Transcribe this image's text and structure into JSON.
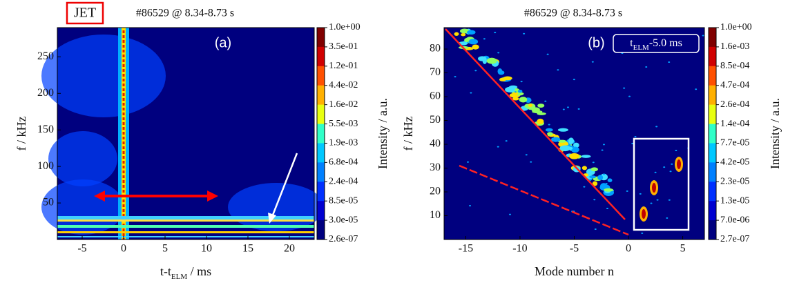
{
  "badge": "JET",
  "chart_data": [
    {
      "type": "heatmap",
      "title": "#86529 @ 8.34-8.73 s",
      "annotation": "(a)",
      "xlabel": [
        "t-t",
        "ELM",
        " / ms"
      ],
      "ylabel": "f / kHz",
      "xlim": [
        -8,
        23
      ],
      "ylim": [
        0,
        290
      ],
      "xticks": [
        -5,
        0,
        5,
        10,
        15,
        20
      ],
      "yticks": [
        50,
        100,
        150,
        200,
        250
      ],
      "colormap": "jet",
      "colorbar_label": "Intensity / a.u.",
      "colorbar_ticks": [
        {
          "value": 1.0,
          "label": "1.0e+00"
        },
        {
          "value": 0.35,
          "label": "3.5e-01"
        },
        {
          "value": 0.12,
          "label": "1.2e-01"
        },
        {
          "value": 0.044,
          "label": "4.4e-02"
        },
        {
          "value": 0.016,
          "label": "1.6e-02"
        },
        {
          "value": 0.0055,
          "label": "5.5e-03"
        },
        {
          "value": 0.0019,
          "label": "1.9e-03"
        },
        {
          "value": 0.00068,
          "label": "6.8e-04"
        },
        {
          "value": 0.00024,
          "label": "2.4e-04"
        },
        {
          "value": 8.5e-05,
          "label": "8.5e-05"
        },
        {
          "value": 3e-05,
          "label": "3.0e-05"
        },
        {
          "value": 2.6e-07,
          "label": "2.6e-07"
        }
      ]
    },
    {
      "type": "heatmap",
      "title": "#86529 @ 8.34-8.73 s",
      "annotation": "(b)",
      "box_label": [
        "t",
        "ELM",
        "-5.0 ms"
      ],
      "xlabel": [
        "Mode number n"
      ],
      "ylabel": "f / kHz",
      "xlim": [
        -17,
        7
      ],
      "ylim": [
        0,
        89
      ],
      "xticks": [
        -15,
        -10,
        -5,
        0,
        5
      ],
      "yticks": [
        10,
        20,
        30,
        40,
        50,
        60,
        70,
        80
      ],
      "colormap": "jet",
      "colorbar_label": "Intensity / a.u.",
      "colorbar_ticks": [
        {
          "value": 1.0,
          "label": "1.0e+00"
        },
        {
          "value": 0.0016,
          "label": "1.6e-03"
        },
        {
          "value": 0.00085,
          "label": "8.5e-04"
        },
        {
          "value": 0.00047,
          "label": "4.7e-04"
        },
        {
          "value": 0.00026,
          "label": "2.6e-04"
        },
        {
          "value": 0.00014,
          "label": "1.4e-04"
        },
        {
          "value": 7.7e-05,
          "label": "7.7e-05"
        },
        {
          "value": 4.2e-05,
          "label": "4.2e-05"
        },
        {
          "value": 2.3e-05,
          "label": "2.3e-05"
        },
        {
          "value": 1.3e-05,
          "label": "1.3e-05"
        },
        {
          "value": 7e-06,
          "label": "7.0e-06"
        },
        {
          "value": 2.7e-07,
          "label": "2.7e-07"
        }
      ]
    }
  ]
}
